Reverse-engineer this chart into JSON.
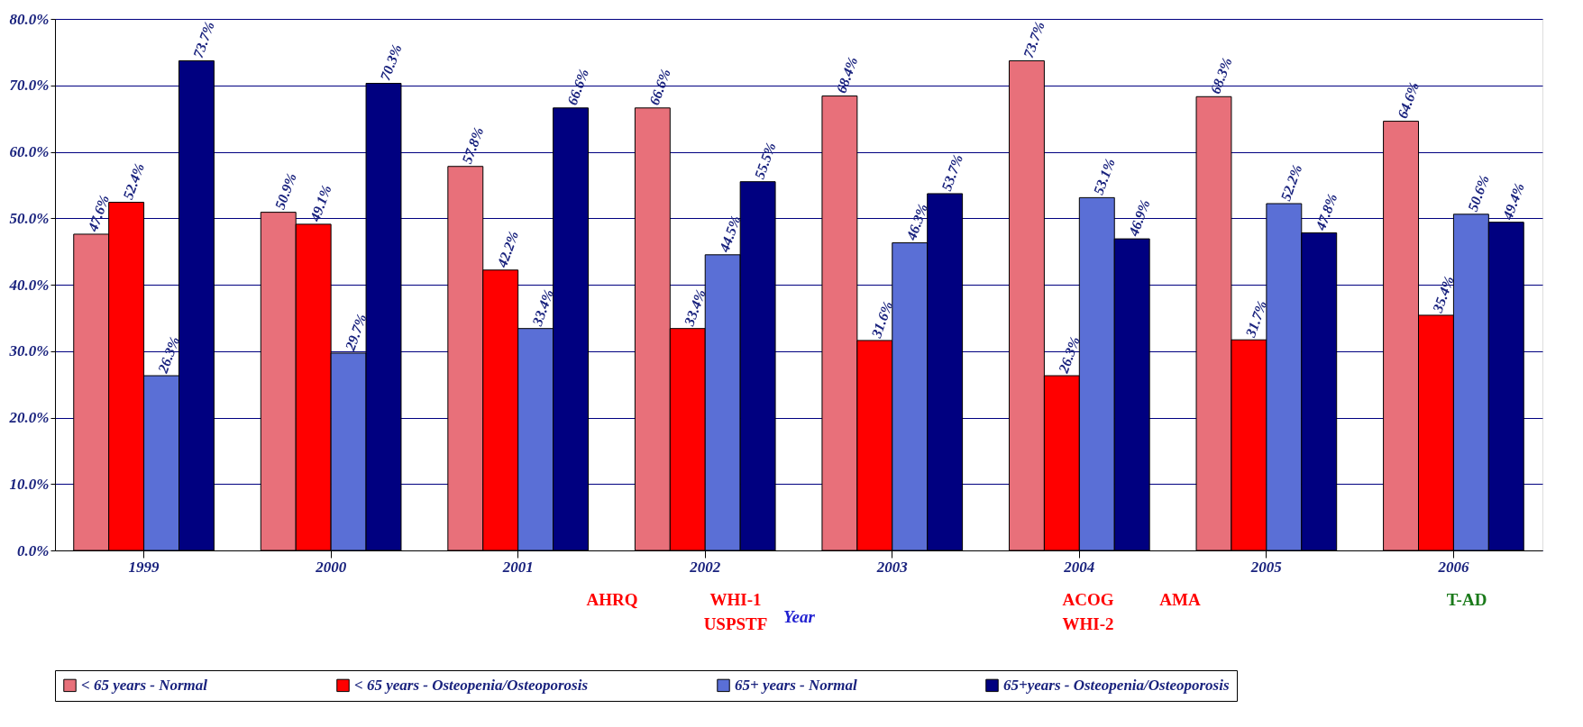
{
  "chart_data": {
    "type": "bar",
    "xlabel": "Year",
    "categories": [
      "1999",
      "2000",
      "2001",
      "2002",
      "2003",
      "2004",
      "2005",
      "2006"
    ],
    "series": [
      {
        "name": "< 65 years - Normal",
        "color": "#e8707a",
        "values": [
          47.6,
          50.9,
          57.8,
          66.6,
          68.4,
          73.7,
          68.3,
          64.6
        ],
        "value_labels": [
          "47.6%",
          "50.9%",
          "57.8%",
          "66.6%",
          "68.4%",
          "73.7%",
          "68.3%",
          "64.6%"
        ]
      },
      {
        "name": "< 65 years - Osteopenia/Osteoporosis",
        "color": "#ff0000",
        "values": [
          52.4,
          49.1,
          42.2,
          33.4,
          31.6,
          26.3,
          31.7,
          35.4
        ],
        "value_labels": [
          "52.4%",
          "49.1%",
          "42.2%",
          "33.4%",
          "31.6%",
          "26.3%",
          "31.7%",
          "35.4%"
        ]
      },
      {
        "name": "65+ years - Normal",
        "color": "#5a6fd6",
        "values": [
          26.3,
          29.7,
          33.4,
          44.5,
          46.3,
          53.1,
          52.2,
          50.6
        ],
        "value_labels": [
          "26.3%",
          "29.7%",
          "33.4%",
          "44.5%",
          "46.3%",
          "53.1%",
          "52.2%",
          "50.6%"
        ]
      },
      {
        "name": "65+years - Osteopenia/Osteoporosis",
        "color": "#000080",
        "values": [
          73.7,
          70.3,
          66.6,
          55.5,
          53.7,
          46.9,
          47.8,
          49.4
        ],
        "value_labels": [
          "73.7%",
          "70.3%",
          "66.6%",
          "55.5%",
          "53.7%",
          "46.9%",
          "47.8%",
          "49.4%"
        ]
      }
    ],
    "ylim": [
      0,
      80
    ],
    "yticks": [
      {
        "value": 0,
        "label": "0.0%"
      },
      {
        "value": 10,
        "label": "10.0%"
      },
      {
        "value": 20,
        "label": "20.0%"
      },
      {
        "value": 30,
        "label": "30.0%"
      },
      {
        "value": 40,
        "label": "40.0%"
      },
      {
        "value": 50,
        "label": "50.0%"
      },
      {
        "value": 60,
        "label": "60.0%"
      },
      {
        "value": 70,
        "label": "70.0%"
      },
      {
        "value": 80,
        "label": "80.0%"
      }
    ],
    "grid": "y",
    "legend": "bottom",
    "annotations": [
      "AHRQ",
      "WHI-1",
      "USPSTF",
      "ACOG",
      "WHI-2",
      "AMA",
      "T-AD"
    ]
  }
}
